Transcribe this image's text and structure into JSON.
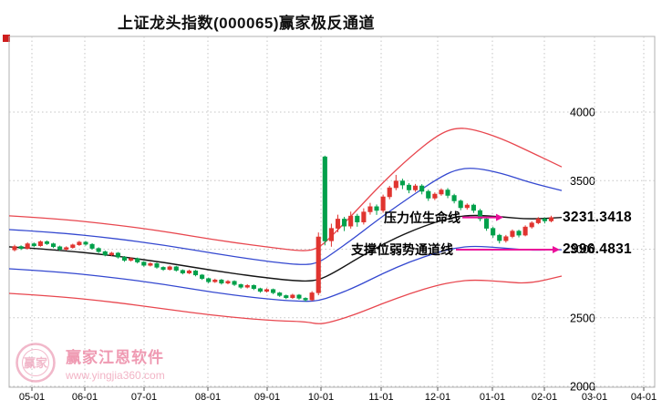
{
  "title": "上证龙头指数(000065)赢家极反通道",
  "annotations": [
    {
      "label": "压力位生命线",
      "value": "3231.3418"
    },
    {
      "label": "支撑位弱势通道线",
      "value": "2996.4831"
    }
  ],
  "watermark": {
    "logo_text": "赢家",
    "name": "赢家江恩软件",
    "url": "www.yingjia360.com"
  },
  "colors": {
    "up_candle": "#e0342f",
    "down_candle": "#00a04a",
    "channel_red": "#e8474f",
    "channel_blue": "#3448d0",
    "life_line_black": "#151515",
    "arrow_magenta": "#ea0f9a",
    "grid": "#c4c4c4",
    "border": "#b0b0b0",
    "axis_text": "#000000",
    "corner_marker": "#cf1d1d"
  },
  "chart_data": {
    "type": "candlestick",
    "title": "上证龙头指数(000065)赢家极反通道",
    "ylim": [
      2000,
      4000
    ],
    "y_ticks": [
      2000,
      2500,
      3000,
      3500,
      4000
    ],
    "x_labels": [
      "05-01",
      "06-01",
      "07-01",
      "08-01",
      "09-01",
      "10-01",
      "11-01",
      "12-01",
      "01-01",
      "02-01",
      "03-01",
      "04-01"
    ],
    "grid": true,
    "legend": "none",
    "resistance_life_line_value": 3231.3418,
    "support_weak_channel_value": 2996.4831,
    "candles_ohlc": [
      [
        2995,
        3032,
        2984,
        3020
      ],
      [
        3020,
        3028,
        2994,
        3005
      ],
      [
        3005,
        3050,
        2998,
        3040
      ],
      [
        3040,
        3049,
        3014,
        3025
      ],
      [
        3025,
        3064,
        3018,
        3055
      ],
      [
        3055,
        3063,
        3031,
        3040
      ],
      [
        3040,
        3047,
        3008,
        3018
      ],
      [
        3018,
        3026,
        2988,
        2998
      ],
      [
        2998,
        3021,
        2990,
        3012
      ],
      [
        3012,
        3040,
        3004,
        3032
      ],
      [
        3032,
        3061,
        3024,
        3052
      ],
      [
        3052,
        3060,
        3026,
        3036
      ],
      [
        3036,
        3044,
        2996,
        3006
      ],
      [
        3006,
        3014,
        2972,
        2982
      ],
      [
        2982,
        2990,
        2948,
        2958
      ],
      [
        2958,
        2981,
        2950,
        2972
      ],
      [
        2972,
        2979,
        2932,
        2942
      ],
      [
        2942,
        2950,
        2908,
        2918
      ],
      [
        2918,
        2941,
        2910,
        2932
      ],
      [
        2932,
        2939,
        2896,
        2906
      ],
      [
        2906,
        2913,
        2872,
        2882
      ],
      [
        2882,
        2905,
        2874,
        2896
      ],
      [
        2896,
        2903,
        2858,
        2868
      ],
      [
        2868,
        2875,
        2842,
        2852
      ],
      [
        2852,
        2881,
        2844,
        2872
      ],
      [
        2872,
        2879,
        2836,
        2846
      ],
      [
        2846,
        2853,
        2816,
        2826
      ],
      [
        2826,
        2851,
        2818,
        2842
      ],
      [
        2842,
        2849,
        2802,
        2812
      ],
      [
        2812,
        2819,
        2776,
        2786
      ],
      [
        2786,
        2793,
        2752,
        2762
      ],
      [
        2762,
        2785,
        2754,
        2776
      ],
      [
        2776,
        2783,
        2742,
        2752
      ],
      [
        2752,
        2775,
        2744,
        2766
      ],
      [
        2766,
        2773,
        2732,
        2742
      ],
      [
        2742,
        2749,
        2712,
        2722
      ],
      [
        2722,
        2745,
        2714,
        2736
      ],
      [
        2736,
        2743,
        2702,
        2712
      ],
      [
        2712,
        2719,
        2682,
        2692
      ],
      [
        2692,
        2715,
        2684,
        2706
      ],
      [
        2706,
        2713,
        2672,
        2682
      ],
      [
        2682,
        2689,
        2652,
        2662
      ],
      [
        2662,
        2669,
        2636,
        2646
      ],
      [
        2646,
        2675,
        2638,
        2666
      ],
      [
        2666,
        2673,
        2632,
        2642
      ],
      [
        2642,
        2649,
        2618,
        2630
      ],
      [
        2630,
        2694,
        2622,
        2682
      ],
      [
        2682,
        3122,
        2664,
        3090
      ],
      [
        3674,
        3682,
        3028,
        3060
      ],
      [
        3060,
        3186,
        3018,
        3152
      ],
      [
        3152,
        3252,
        3124,
        3220
      ],
      [
        3220,
        3236,
        3132,
        3168
      ],
      [
        3168,
        3274,
        3150,
        3242
      ],
      [
        3242,
        3258,
        3164,
        3198
      ],
      [
        3198,
        3298,
        3180,
        3272
      ],
      [
        3272,
        3338,
        3252,
        3310
      ],
      [
        3310,
        3326,
        3250,
        3282
      ],
      [
        3282,
        3398,
        3266,
        3382
      ],
      [
        3382,
        3462,
        3364,
        3448
      ],
      [
        3448,
        3542,
        3430,
        3498
      ],
      [
        3498,
        3514,
        3438,
        3468
      ],
      [
        3468,
        3482,
        3408,
        3432
      ],
      [
        3432,
        3476,
        3418,
        3462
      ],
      [
        3462,
        3474,
        3400,
        3422
      ],
      [
        3422,
        3434,
        3352,
        3372
      ],
      [
        3372,
        3414,
        3358,
        3402
      ],
      [
        3402,
        3444,
        3390,
        3432
      ],
      [
        3432,
        3446,
        3372,
        3392
      ],
      [
        3392,
        3404,
        3334,
        3352
      ],
      [
        3352,
        3362,
        3284,
        3302
      ],
      [
        3302,
        3334,
        3288,
        3322
      ],
      [
        3322,
        3332,
        3264,
        3282
      ],
      [
        3282,
        3294,
        3204,
        3222
      ],
      [
        3222,
        3232,
        3134,
        3152
      ],
      [
        3152,
        3164,
        3084,
        3102
      ],
      [
        3102,
        3112,
        3042,
        3062
      ],
      [
        3062,
        3104,
        3048,
        3092
      ],
      [
        3092,
        3144,
        3080,
        3132
      ],
      [
        3132,
        3142,
        3086,
        3102
      ],
      [
        3102,
        3174,
        3094,
        3162
      ],
      [
        3162,
        3204,
        3150,
        3192
      ],
      [
        3192,
        3234,
        3182,
        3222
      ],
      [
        3222,
        3232,
        3188,
        3206
      ],
      [
        3206,
        3244,
        3196,
        3231.34
      ]
    ],
    "channel_lines": [
      {
        "name": "resistance-outer-red-upper",
        "color": "#e8474f",
        "width": 1.3,
        "points": [
          [
            10,
            3243
          ],
          [
            60,
            3223
          ],
          [
            120,
            3183
          ],
          [
            180,
            3130
          ],
          [
            240,
            3063
          ],
          [
            300,
            3010
          ],
          [
            335,
            2983
          ],
          [
            350,
            3010
          ],
          [
            365,
            3103
          ],
          [
            390,
            3276
          ],
          [
            420,
            3488
          ],
          [
            450,
            3674
          ],
          [
            480,
            3834
          ],
          [
            500,
            3887
          ],
          [
            520,
            3874
          ],
          [
            550,
            3807
          ],
          [
            580,
            3714
          ],
          [
            616,
            3600
          ]
        ]
      },
      {
        "name": "strong-channel-blue-upper",
        "color": "#3448d0",
        "width": 1.3,
        "points": [
          [
            10,
            3143
          ],
          [
            60,
            3123
          ],
          [
            120,
            3083
          ],
          [
            180,
            3030
          ],
          [
            240,
            2963
          ],
          [
            300,
            2904
          ],
          [
            335,
            2884
          ],
          [
            350,
            2904
          ],
          [
            365,
            2970
          ],
          [
            390,
            3090
          ],
          [
            420,
            3243
          ],
          [
            450,
            3382
          ],
          [
            480,
            3515
          ],
          [
            500,
            3581
          ],
          [
            520,
            3595
          ],
          [
            550,
            3555
          ],
          [
            580,
            3488
          ],
          [
            616,
            3428
          ]
        ]
      },
      {
        "name": "life-line-middle-black",
        "color": "#151515",
        "width": 1.4,
        "points": [
          [
            10,
            3017
          ],
          [
            60,
            2997
          ],
          [
            120,
            2957
          ],
          [
            180,
            2904
          ],
          [
            240,
            2837
          ],
          [
            300,
            2784
          ],
          [
            335,
            2764
          ],
          [
            350,
            2777
          ],
          [
            365,
            2824
          ],
          [
            390,
            2924
          ],
          [
            420,
            3037
          ],
          [
            450,
            3130
          ],
          [
            480,
            3203
          ],
          [
            500,
            3236
          ],
          [
            520,
            3249
          ],
          [
            550,
            3236
          ],
          [
            580,
            3218
          ],
          [
            616,
            3231
          ]
        ]
      },
      {
        "name": "weak-channel-blue-lower",
        "color": "#3448d0",
        "width": 1.3,
        "points": [
          [
            10,
            2857
          ],
          [
            60,
            2837
          ],
          [
            120,
            2797
          ],
          [
            180,
            2744
          ],
          [
            240,
            2678
          ],
          [
            300,
            2631
          ],
          [
            335,
            2618
          ],
          [
            350,
            2625
          ],
          [
            365,
            2658
          ],
          [
            390,
            2724
          ],
          [
            420,
            2824
          ],
          [
            450,
            2910
          ],
          [
            480,
            2977
          ],
          [
            500,
            3010
          ],
          [
            520,
            3023
          ],
          [
            550,
            3010
          ],
          [
            580,
            2992
          ],
          [
            616,
            2996
          ]
        ]
      },
      {
        "name": "support-outer-red-lower",
        "color": "#e8474f",
        "width": 1.3,
        "points": [
          [
            10,
            2678
          ],
          [
            60,
            2658
          ],
          [
            120,
            2618
          ],
          [
            180,
            2565
          ],
          [
            240,
            2512
          ],
          [
            300,
            2478
          ],
          [
            335,
            2472
          ],
          [
            350,
            2452
          ],
          [
            365,
            2472
          ],
          [
            390,
            2525
          ],
          [
            420,
            2605
          ],
          [
            450,
            2678
          ],
          [
            480,
            2738
          ],
          [
            500,
            2764
          ],
          [
            520,
            2777
          ],
          [
            550,
            2764
          ],
          [
            580,
            2748
          ],
          [
            616,
            2804
          ]
        ]
      }
    ]
  }
}
